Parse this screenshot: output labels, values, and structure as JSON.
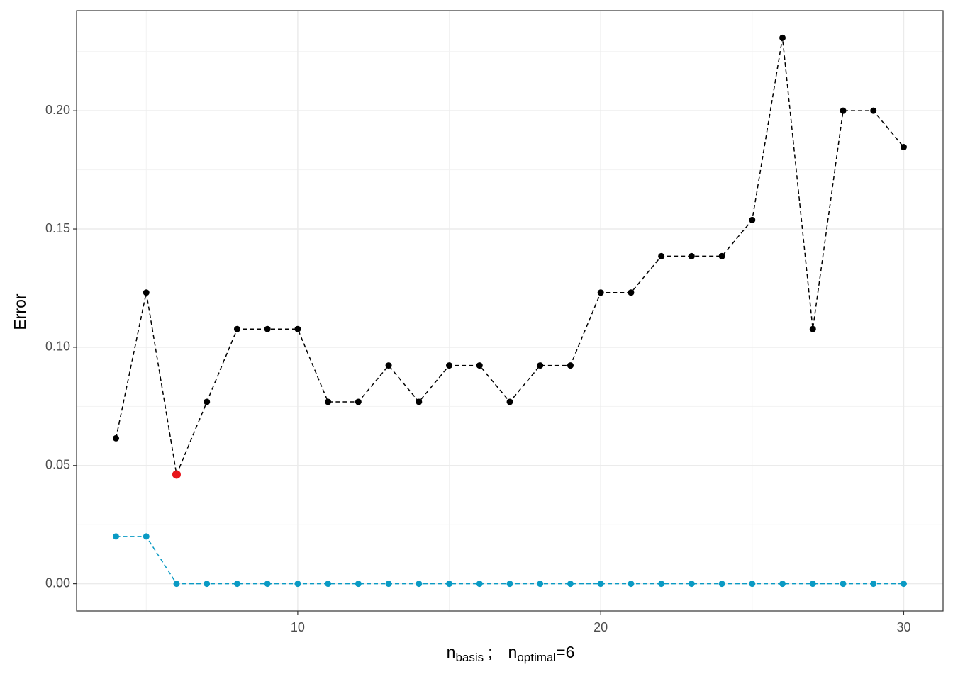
{
  "chart_data": {
    "type": "line",
    "x_label": {
      "n1": "n",
      "sub1": "basis",
      "sep": ";",
      "n2": "n",
      "sub2": "optimal",
      "eq": "=",
      "val": "6"
    },
    "y_label": "Error",
    "x": [
      4,
      5,
      6,
      7,
      8,
      9,
      10,
      11,
      12,
      13,
      14,
      15,
      16,
      17,
      18,
      19,
      20,
      21,
      22,
      23,
      24,
      25,
      26,
      27,
      28,
      29,
      30
    ],
    "series": [
      {
        "color": "#000000",
        "values": [
          0.0615,
          0.1231,
          0.0462,
          0.0769,
          0.1077,
          0.1077,
          0.1077,
          0.0769,
          0.0769,
          0.0923,
          0.0769,
          0.0923,
          0.0923,
          0.0769,
          0.0923,
          0.0923,
          0.1231,
          0.1231,
          0.1385,
          0.1385,
          0.1385,
          0.1538,
          0.2308,
          0.1077,
          0.2,
          0.2,
          0.1846
        ]
      },
      {
        "color": "#0a9ac4",
        "values": [
          0.02,
          0.02,
          0,
          0,
          0,
          0,
          0,
          0,
          0,
          0,
          0,
          0,
          0,
          0,
          0,
          0,
          0,
          0,
          0,
          0,
          0,
          0,
          0,
          0,
          0,
          0,
          0
        ]
      }
    ],
    "highlight": {
      "x": 6,
      "value": 0.0462,
      "color": "#e8161b"
    },
    "xlim": [
      2.7,
      31.3
    ],
    "ylim": [
      -0.0115,
      0.2423
    ],
    "xticks": [
      10,
      20,
      30
    ],
    "yticks": [
      {
        "value": 0,
        "label": "0.00"
      },
      {
        "value": 0.05,
        "label": "0.05"
      },
      {
        "value": 0.1,
        "label": "0.10"
      },
      {
        "value": 0.15,
        "label": "0.15"
      },
      {
        "value": 0.2,
        "label": "0.20"
      }
    ],
    "xminor": [
      5,
      15,
      25
    ],
    "yminor": [
      0.025,
      0.075,
      0.125,
      0.175,
      0.225
    ],
    "grid": true
  }
}
